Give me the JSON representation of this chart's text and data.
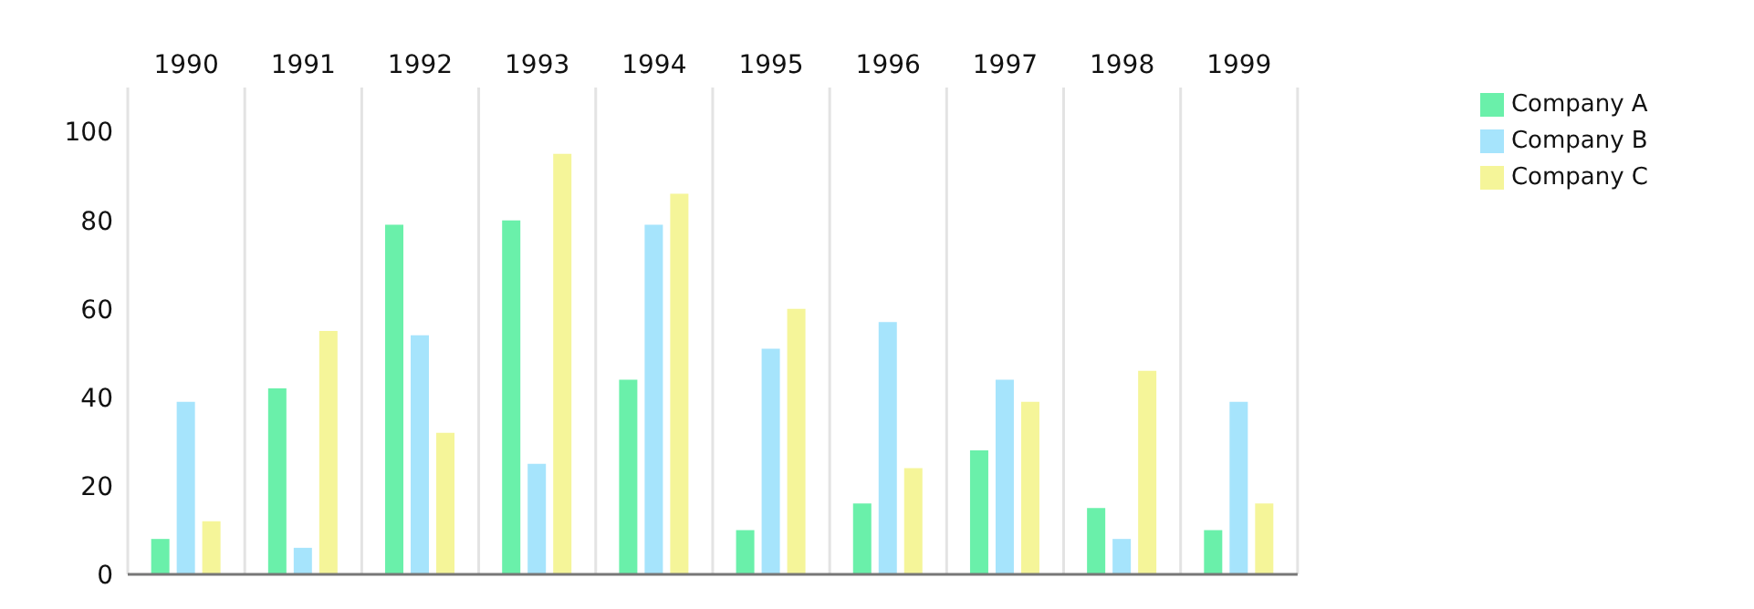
{
  "chart_data": {
    "type": "bar",
    "categories": [
      "1990",
      "1991",
      "1992",
      "1993",
      "1994",
      "1995",
      "1996",
      "1997",
      "1998",
      "1999"
    ],
    "series": [
      {
        "name": "Company A",
        "color": "#6af0aa",
        "values": [
          8,
          42,
          79,
          80,
          44,
          10,
          16,
          28,
          15,
          10
        ]
      },
      {
        "name": "Company B",
        "color": "#a6e4fc",
        "values": [
          39,
          6,
          54,
          25,
          79,
          51,
          57,
          44,
          8,
          39
        ]
      },
      {
        "name": "Company C",
        "color": "#f5f599",
        "values": [
          12,
          55,
          32,
          95,
          86,
          60,
          24,
          39,
          46,
          16
        ]
      }
    ],
    "ylim": [
      0,
      110
    ],
    "yticks": [
      0,
      20,
      40,
      60,
      80,
      100
    ],
    "grid": "x",
    "legend": "top right"
  }
}
